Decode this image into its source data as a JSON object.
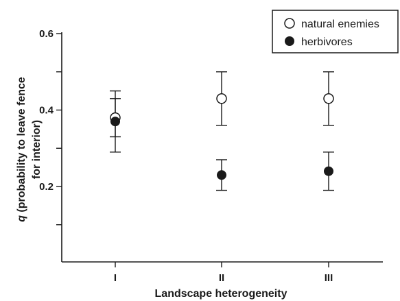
{
  "chart_data": {
    "type": "scatter",
    "categories": [
      "I",
      "II",
      "III"
    ],
    "xlabel": "Landscape heterogeneity",
    "ylabel_italic": "q",
    "ylabel_line1": " (probability to leave fence",
    "ylabel_line2": "for interior)",
    "ylim": [
      0,
      0.6
    ],
    "y_ticks": [
      {
        "value": 0.6,
        "label": "0.6"
      },
      {
        "value": 0.5,
        "label": ""
      },
      {
        "value": 0.4,
        "label": "0.4"
      },
      {
        "value": 0.3,
        "label": ""
      },
      {
        "value": 0.2,
        "label": "0.2"
      },
      {
        "value": 0.1,
        "label": ""
      }
    ],
    "grid": false,
    "legend_position": "top-right",
    "series": [
      {
        "name": "natural enemies",
        "marker": "open-circle",
        "color": "#1a1a1a",
        "values": [
          0.38,
          0.43,
          0.43
        ],
        "err_low": [
          0.29,
          0.36,
          0.36
        ],
        "err_high": [
          0.45,
          0.5,
          0.5
        ]
      },
      {
        "name": "herbivores",
        "marker": "filled-circle",
        "color": "#1a1a1a",
        "values": [
          0.37,
          0.23,
          0.24
        ],
        "err_low": [
          0.33,
          0.19,
          0.19
        ],
        "err_high": [
          0.43,
          0.27,
          0.29
        ]
      }
    ]
  }
}
